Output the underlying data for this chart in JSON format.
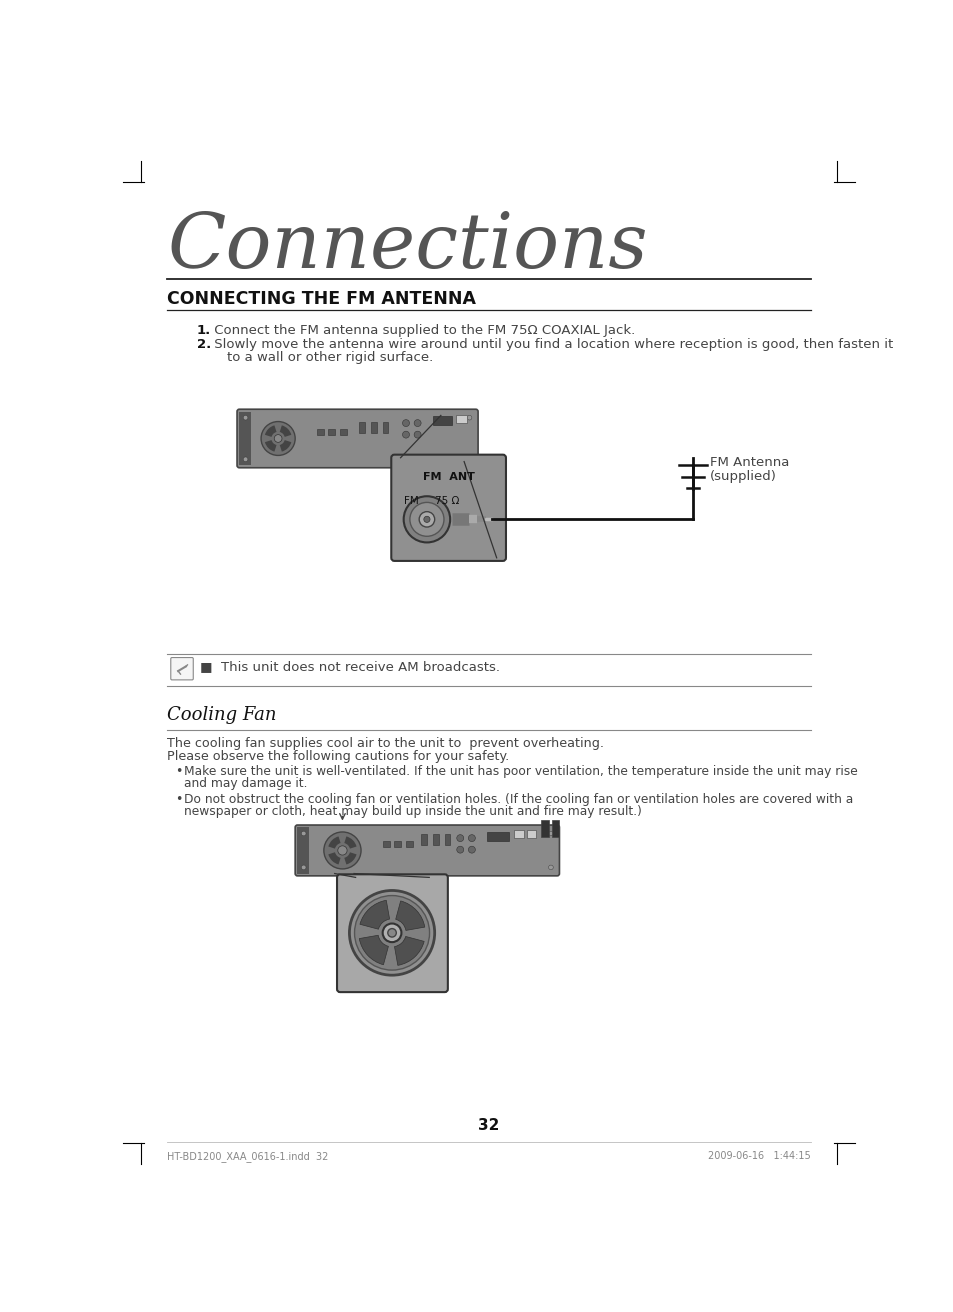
{
  "page_bg": "#ffffff",
  "title_large": "Connections",
  "section1_title": "CONNECTING THE FM ANTENNA",
  "step1_bold": "1.",
  "step1_text": " Connect the FM antenna supplied to the FM 75Ω COAXIAL Jack.",
  "step2_text1": " Slowly move the antenna wire around until you find a location where reception is good, then fasten it",
  "step2_text2": "    to a wall or other rigid surface.",
  "note_text": "■  This unit does not receive AM broadcasts.",
  "section2_title": "Cooling Fan",
  "cooling_text1": "The cooling fan supplies cool air to the unit to  prevent overheating.",
  "cooling_text2": "Please observe the following cautions for your safety.",
  "bullet1a": "Make sure the unit is well-ventilated. If the unit has poor ventilation, the temperature inside the unit may rise",
  "bullet1b": "and may damage it.",
  "bullet2a": "Do not obstruct the cooling fan or ventilation holes. (If the cooling fan or ventilation holes are covered with a",
  "bullet2b": "newspaper or cloth, heat may build up inside the unit and fire may result.)",
  "fm_antenna_label1": "FM Antenna",
  "fm_antenna_label2": "(supplied)",
  "page_number": "32",
  "footer_left": "HT-BD1200_XAA_0616-1.indd  32",
  "footer_right": "2009-06-16   1:44:15",
  "text_color": "#444444",
  "dark_color": "#111111",
  "title_color": "#555555",
  "device_gray": "#8a8a8a",
  "device_dark": "#606060",
  "device_light": "#b0b0b0",
  "zoom_bg": "#a0a0a0",
  "fan_dark": "#505050"
}
